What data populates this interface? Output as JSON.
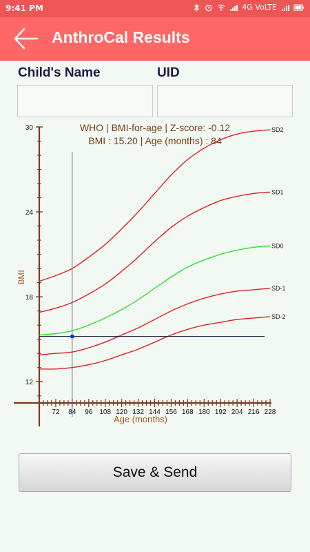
{
  "status_bar": {
    "time": "9:41 PM",
    "network": "4G VoLTE",
    "icons": [
      "bluetooth-icon",
      "alarm-icon",
      "wifi-icon",
      "signal-icon",
      "signal-icon",
      "battery-icon"
    ]
  },
  "app_bar": {
    "title": "AnthroCal Results",
    "back_icon": "arrow-left-icon"
  },
  "form": {
    "name_label": "Child's  Name",
    "name_value": "",
    "uid_label": "UID",
    "uid_value": ""
  },
  "colors": {
    "status_bar": "#ee5555",
    "app_bar": "#ff6666",
    "sd_curves": "#dd2222",
    "median_curve": "#33dd33",
    "axis": "#7a3a1a"
  },
  "chart_data": {
    "type": "line",
    "title_line1": "WHO | BMI-for-age | Z-score:  -0.12",
    "title_line2": "BMI  :  15.20  | Age (months) :  84",
    "xlabel": "Age (months)",
    "ylabel": "BMI",
    "xlim": [
      60,
      228
    ],
    "ylim": [
      10.5,
      30
    ],
    "x_ticks": [
      72,
      84,
      96,
      108,
      120,
      132,
      144,
      156,
      168,
      180,
      192,
      204,
      216,
      228
    ],
    "y_ticks": [
      12,
      18,
      24,
      30
    ],
    "grid": false,
    "x": [
      60,
      72,
      84,
      96,
      108,
      120,
      132,
      144,
      156,
      168,
      180,
      192,
      204,
      216,
      228
    ],
    "series": [
      {
        "name": "SD2",
        "values": [
          19.1,
          19.5,
          20.0,
          20.8,
          21.7,
          22.8,
          24.0,
          25.3,
          26.6,
          27.7,
          28.5,
          29.1,
          29.5,
          29.7,
          29.8
        ]
      },
      {
        "name": "SD1",
        "values": [
          16.9,
          17.2,
          17.6,
          18.2,
          18.9,
          19.8,
          20.8,
          21.9,
          22.9,
          23.7,
          24.3,
          24.8,
          25.1,
          25.3,
          25.4
        ]
      },
      {
        "name": "SD0",
        "values": [
          15.3,
          15.4,
          15.6,
          16.0,
          16.5,
          17.1,
          17.8,
          18.6,
          19.4,
          20.1,
          20.6,
          21.0,
          21.3,
          21.5,
          21.6
        ]
      },
      {
        "name": "SD-1",
        "values": [
          13.9,
          14.0,
          14.1,
          14.4,
          14.8,
          15.3,
          15.8,
          16.4,
          17.0,
          17.5,
          17.9,
          18.2,
          18.4,
          18.5,
          18.6
        ]
      },
      {
        "name": "SD-2",
        "values": [
          12.9,
          12.9,
          13.0,
          13.2,
          13.5,
          13.9,
          14.3,
          14.8,
          15.3,
          15.7,
          16.0,
          16.2,
          16.4,
          16.5,
          16.6
        ]
      }
    ],
    "point": {
      "age_months": 84,
      "bmi": 15.2
    }
  },
  "actions": {
    "save_label": "Save & Send"
  }
}
